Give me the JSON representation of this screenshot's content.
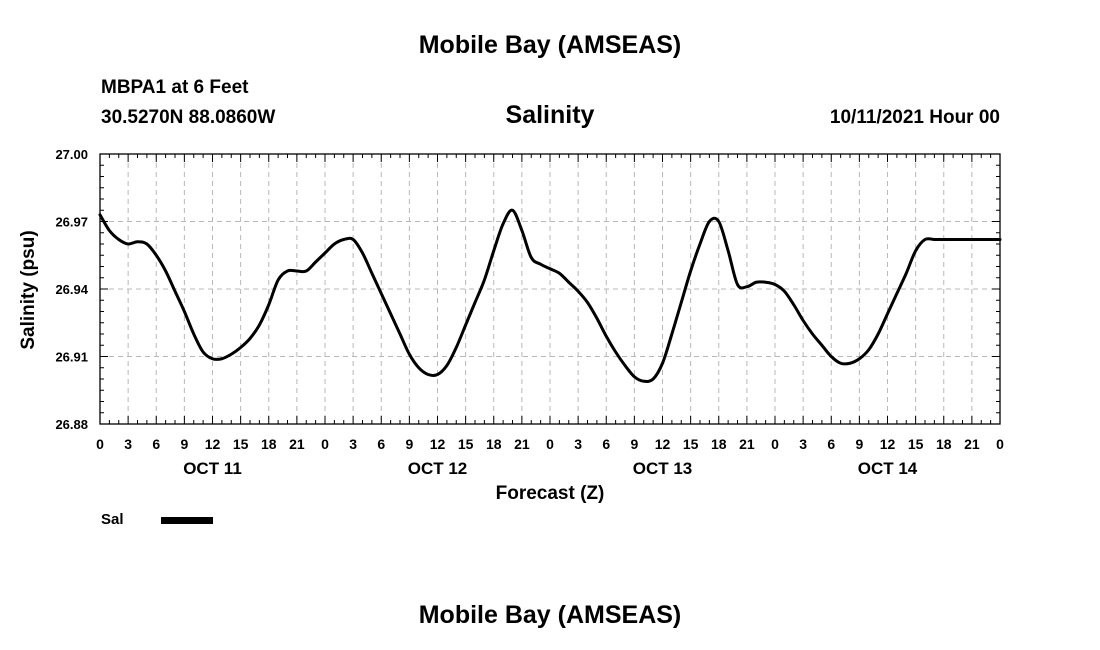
{
  "header": {
    "title": "Mobile Bay (AMSEAS)",
    "station": "MBPA1 at 6 Feet",
    "coordinates": "30.5270N  88.0860W",
    "run_time": "10/11/2021 Hour 00"
  },
  "footer": {
    "title": "Mobile Bay (AMSEAS)"
  },
  "legend": {
    "label": "Sal",
    "color": "#000000"
  },
  "chart_data": {
    "type": "line",
    "title": "Salinity",
    "xlabel": "Forecast (Z)",
    "ylabel": "Salinity (psu)",
    "ylim": [
      26.88,
      27.0
    ],
    "yticks": [
      "27.00",
      "26.97",
      "26.94",
      "26.91",
      "26.88"
    ],
    "xlim": [
      0,
      96
    ],
    "xtick_labels": [
      "0",
      "3",
      "6",
      "9",
      "12",
      "15",
      "18",
      "21",
      "0",
      "3",
      "6",
      "9",
      "12",
      "15",
      "18",
      "21",
      "0",
      "3",
      "6",
      "9",
      "12",
      "15",
      "18",
      "21",
      "0",
      "3",
      "6",
      "9",
      "12",
      "15",
      "18",
      "21",
      "0"
    ],
    "day_labels": [
      {
        "label": "OCT 11",
        "hour": 12
      },
      {
        "label": "OCT 12",
        "hour": 36
      },
      {
        "label": "OCT 13",
        "hour": 60
      },
      {
        "label": "OCT 14",
        "hour": 84
      }
    ],
    "grid": true,
    "legend_position": "bottom-left",
    "series": [
      {
        "name": "Sal",
        "color": "#000000",
        "x": [
          0,
          1,
          2,
          3,
          4,
          5,
          6,
          7,
          8,
          9,
          10,
          11,
          12,
          13,
          14,
          15,
          16,
          17,
          18,
          19,
          20,
          21,
          22,
          23,
          24,
          25,
          26,
          27,
          28,
          29,
          30,
          31,
          32,
          33,
          34,
          35,
          36,
          37,
          38,
          39,
          40,
          41,
          42,
          43,
          44,
          45,
          46,
          47,
          48,
          49,
          50,
          51,
          52,
          53,
          54,
          55,
          56,
          57,
          58,
          59,
          60,
          61,
          62,
          63,
          64,
          65,
          66,
          67,
          68,
          69,
          70,
          71,
          72,
          73,
          74,
          75,
          76,
          77,
          78,
          79,
          80,
          81,
          82,
          83,
          84,
          85,
          86,
          87,
          88,
          89,
          90,
          91,
          92,
          93,
          94,
          95,
          96
        ],
        "values": [
          26.973,
          26.966,
          26.962,
          26.96,
          26.961,
          26.96,
          26.955,
          26.948,
          26.939,
          26.93,
          26.92,
          26.912,
          26.909,
          26.909,
          26.911,
          26.914,
          26.918,
          26.924,
          26.933,
          26.944,
          26.948,
          26.948,
          26.948,
          26.952,
          26.956,
          26.96,
          26.962,
          26.962,
          26.956,
          26.947,
          26.938,
          26.929,
          26.92,
          26.911,
          26.905,
          26.902,
          26.902,
          26.906,
          26.914,
          26.924,
          26.934,
          26.944,
          26.957,
          26.969,
          26.975,
          26.966,
          26.954,
          26.951,
          26.949,
          26.947,
          26.943,
          26.939,
          26.934,
          26.927,
          26.919,
          26.912,
          26.906,
          26.901,
          26.899,
          26.9,
          26.907,
          26.92,
          26.934,
          26.948,
          26.96,
          26.97,
          26.97,
          26.957,
          26.942,
          26.941,
          26.943,
          26.943,
          26.942,
          26.939,
          26.933,
          26.926,
          26.92,
          26.915,
          26.91,
          26.907,
          26.907,
          26.909,
          26.913,
          26.92,
          26.929,
          26.938,
          26.947,
          26.957,
          26.962,
          26.962,
          26.962,
          26.962,
          26.962,
          26.962,
          26.962,
          26.962,
          26.962
        ]
      }
    ]
  }
}
